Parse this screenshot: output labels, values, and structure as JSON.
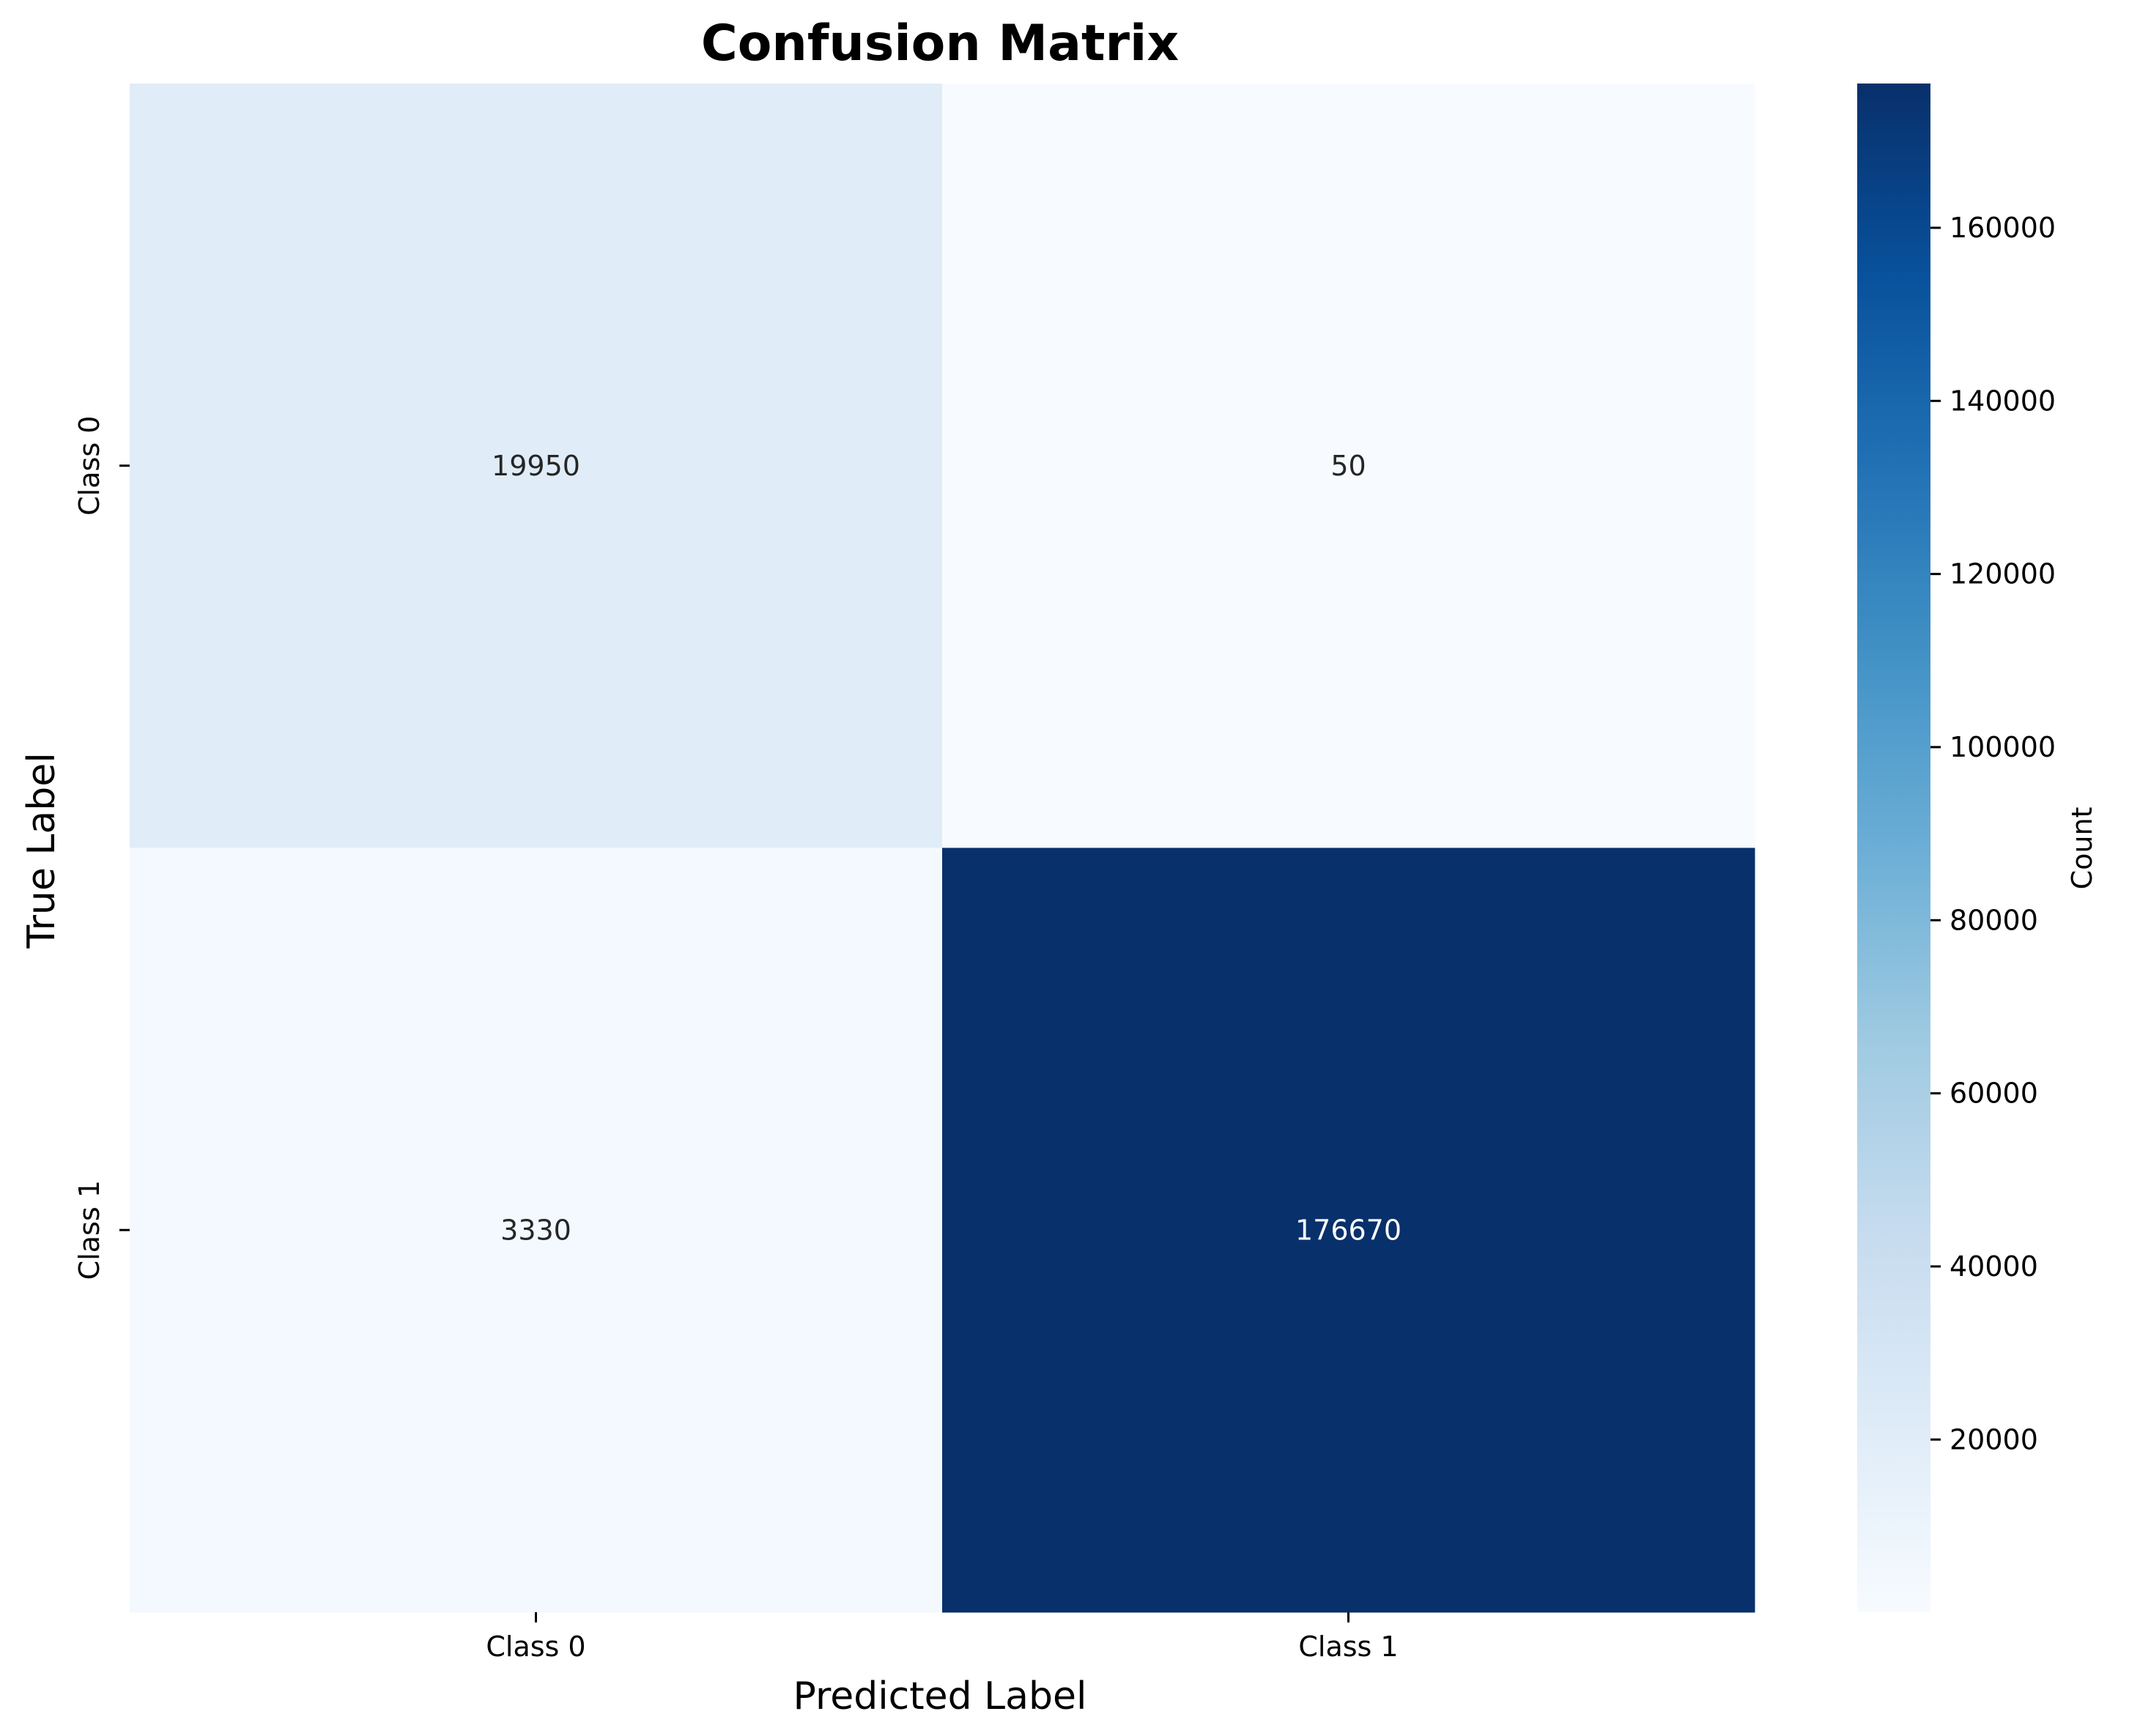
{
  "chart_data": {
    "type": "heatmap",
    "title": "Confusion Matrix",
    "xlabel": "Predicted Label",
    "ylabel": "True Label",
    "x_categories": [
      "Class 0",
      "Class 1"
    ],
    "y_categories": [
      "Class 0",
      "Class 1"
    ],
    "values": [
      [
        19950,
        50
      ],
      [
        3330,
        176670
      ]
    ],
    "colormap": "Blues",
    "colorbar": {
      "label": "Count",
      "min": 50,
      "max": 176670,
      "ticks": [
        20000,
        40000,
        60000,
        80000,
        100000,
        120000,
        140000,
        160000
      ],
      "tick_labels": [
        "20000",
        "40000",
        "60000",
        "80000",
        "100000",
        "120000",
        "140000",
        "160000"
      ]
    },
    "grid": false
  }
}
